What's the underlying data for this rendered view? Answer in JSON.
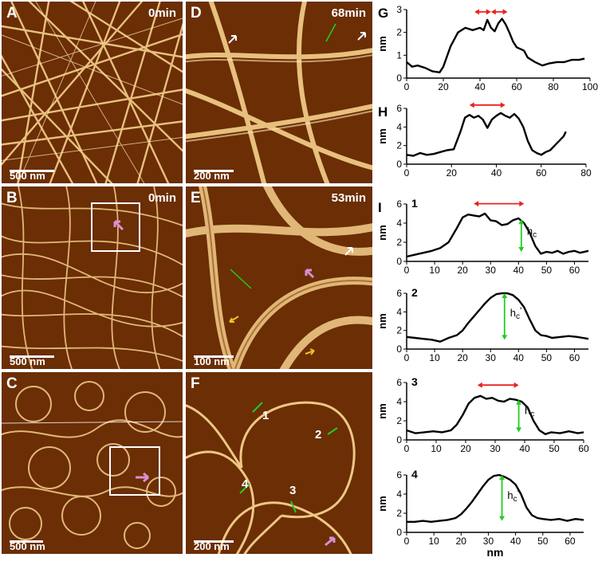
{
  "panels": [
    {
      "id": "A",
      "label": "A",
      "time": "0min",
      "scale": "500 nm"
    },
    {
      "id": "B",
      "label": "B",
      "time": "0min",
      "scale": "500 nm"
    },
    {
      "id": "C",
      "label": "C",
      "time": "",
      "scale": "500 nm"
    },
    {
      "id": "D",
      "label": "D",
      "time": "68min",
      "scale": "200 nm"
    },
    {
      "id": "E",
      "label": "E",
      "time": "53min",
      "scale": "100 nm"
    },
    {
      "id": "F",
      "label": "F",
      "time": "",
      "scale": "200 nm",
      "markers": [
        "1",
        "2",
        "3",
        "4"
      ]
    }
  ],
  "colors": {
    "afm_background": "#6b2e05",
    "fibril": "#f6d08c",
    "red_arrow": "#e8231f",
    "green_arrow": "#22cc22",
    "pink_arrow": "#d98fd5"
  },
  "chart_data": [
    {
      "id": "G",
      "label": "G",
      "type": "line",
      "ylabel": "nm",
      "xlim": [
        0,
        100
      ],
      "ylim": [
        0,
        3
      ],
      "xticks": [
        "0",
        "20",
        "40",
        "60",
        "80",
        "100"
      ],
      "yticks": [
        "0",
        "1",
        "2",
        "3"
      ],
      "x": [
        0,
        3,
        6,
        10,
        14,
        18,
        20,
        24,
        28,
        32,
        36,
        40,
        42,
        44,
        46,
        48,
        50,
        52,
        54,
        56,
        58,
        60,
        64,
        66,
        70,
        74,
        78,
        82,
        86,
        90,
        94,
        97
      ],
      "y": [
        0.7,
        0.5,
        0.55,
        0.45,
        0.3,
        0.25,
        0.5,
        1.4,
        2.0,
        2.2,
        2.1,
        2.2,
        2.1,
        2.55,
        2.2,
        2.05,
        2.4,
        2.6,
        2.35,
        2.0,
        1.6,
        1.35,
        1.2,
        0.9,
        0.7,
        0.55,
        0.65,
        0.7,
        0.7,
        0.8,
        0.8,
        0.85
      ]
    },
    {
      "id": "H",
      "label": "H",
      "type": "line",
      "ylabel": "nm",
      "xlim": [
        0,
        80
      ],
      "ylim": [
        0,
        6
      ],
      "xticks": [
        "0",
        "20",
        "40",
        "60",
        "80"
      ],
      "yticks": [
        "0",
        "2",
        "4",
        "6"
      ],
      "x": [
        0,
        3,
        6,
        9,
        12,
        15,
        18,
        21,
        24,
        26,
        28,
        30,
        32,
        34,
        36,
        38,
        40,
        42,
        44,
        46,
        48,
        50,
        52,
        54,
        56,
        58,
        60,
        62,
        64,
        66,
        68,
        70,
        71
      ],
      "y": [
        1.0,
        0.9,
        1.2,
        1.0,
        1.1,
        1.3,
        1.5,
        1.6,
        3.5,
        5.0,
        5.3,
        5.0,
        5.2,
        4.8,
        3.9,
        4.8,
        5.2,
        5.5,
        5.2,
        5.0,
        5.4,
        4.9,
        4.0,
        2.5,
        1.5,
        1.2,
        1.0,
        1.3,
        1.5,
        2.0,
        2.5,
        3.0,
        3.5
      ]
    },
    {
      "id": "I1",
      "label": "I",
      "sublabel": "1",
      "type": "line",
      "ylabel": "nm",
      "xlim": [
        0,
        65
      ],
      "ylim": [
        0,
        6
      ],
      "xticks": [
        "0",
        "10",
        "20",
        "30",
        "40",
        "50",
        "60"
      ],
      "yticks": [
        "0",
        "2",
        "4",
        "6"
      ],
      "annotation": "h_c",
      "x": [
        0,
        3,
        6,
        9,
        12,
        15,
        18,
        20,
        22,
        24,
        26,
        28,
        30,
        32,
        34,
        36,
        38,
        40,
        42,
        44,
        46,
        48,
        50,
        52,
        54,
        56,
        58,
        60,
        62,
        65
      ],
      "y": [
        0.5,
        0.7,
        0.9,
        1.1,
        1.4,
        2.0,
        3.5,
        4.6,
        4.9,
        4.8,
        4.7,
        5.0,
        4.3,
        4.2,
        3.8,
        3.9,
        4.3,
        4.5,
        4.0,
        3.0,
        1.6,
        0.8,
        1.0,
        0.9,
        1.1,
        0.8,
        1.0,
        1.1,
        0.9,
        1.1
      ]
    },
    {
      "id": "I2",
      "label": "",
      "sublabel": "2",
      "type": "line",
      "ylabel": "nm",
      "xlim": [
        0,
        65
      ],
      "ylim": [
        0,
        6
      ],
      "xticks": [
        "0",
        "10",
        "20",
        "30",
        "40",
        "50",
        "60"
      ],
      "yticks": [
        "0",
        "2",
        "4",
        "6"
      ],
      "annotation": "h_c'",
      "x": [
        0,
        3,
        6,
        9,
        12,
        15,
        18,
        20,
        22,
        24,
        26,
        28,
        30,
        32,
        34,
        36,
        38,
        40,
        42,
        44,
        46,
        48,
        50,
        52,
        55,
        58,
        61,
        63,
        65
      ],
      "y": [
        1.3,
        1.2,
        1.1,
        1.0,
        0.8,
        1.2,
        1.5,
        2.0,
        2.8,
        3.5,
        4.2,
        4.9,
        5.5,
        5.9,
        6.0,
        6.0,
        5.8,
        5.3,
        4.5,
        3.2,
        2.0,
        1.5,
        1.4,
        1.2,
        1.3,
        1.4,
        1.3,
        1.2,
        1.1
      ]
    },
    {
      "id": "I3",
      "label": "",
      "sublabel": "3",
      "type": "line",
      "ylabel": "nm",
      "xlim": [
        0,
        60
      ],
      "ylim": [
        0,
        6
      ],
      "xticks": [
        "0",
        "10",
        "20",
        "30",
        "40",
        "50",
        "60"
      ],
      "yticks": [
        "0",
        "2",
        "4",
        "6"
      ],
      "annotation": "h_c",
      "x": [
        0,
        3,
        6,
        9,
        12,
        15,
        17,
        19,
        21,
        23,
        25,
        27,
        29,
        31,
        33,
        35,
        37,
        39,
        41,
        43,
        45,
        47,
        49,
        52,
        55,
        58,
        60
      ],
      "y": [
        1.0,
        0.7,
        0.8,
        0.9,
        0.8,
        1.0,
        1.6,
        2.6,
        3.8,
        4.4,
        4.6,
        4.3,
        4.4,
        4.1,
        4.0,
        4.3,
        4.2,
        4.0,
        3.4,
        2.0,
        1.0,
        0.6,
        0.8,
        0.7,
        0.9,
        0.7,
        0.8
      ]
    },
    {
      "id": "I4",
      "label": "",
      "sublabel": "4",
      "type": "line",
      "ylabel": "nm",
      "xlabel": "nm",
      "xlim": [
        0,
        65
      ],
      "ylim": [
        0,
        6
      ],
      "xticks": [
        "0",
        "10",
        "20",
        "30",
        "40",
        "50",
        "60"
      ],
      "yticks": [
        "0",
        "2",
        "4",
        "6"
      ],
      "annotation": "h_c'",
      "x": [
        0,
        3,
        6,
        9,
        12,
        15,
        18,
        20,
        22,
        24,
        26,
        28,
        30,
        32,
        34,
        36,
        38,
        40,
        42,
        44,
        46,
        48,
        50,
        53,
        56,
        59,
        62,
        65
      ],
      "y": [
        1.1,
        1.1,
        1.2,
        1.1,
        1.2,
        1.3,
        1.5,
        1.9,
        2.5,
        3.2,
        4.0,
        4.8,
        5.5,
        5.9,
        6.0,
        5.8,
        5.5,
        5.0,
        4.0,
        2.6,
        1.8,
        1.5,
        1.4,
        1.3,
        1.4,
        1.2,
        1.4,
        1.3
      ]
    }
  ]
}
